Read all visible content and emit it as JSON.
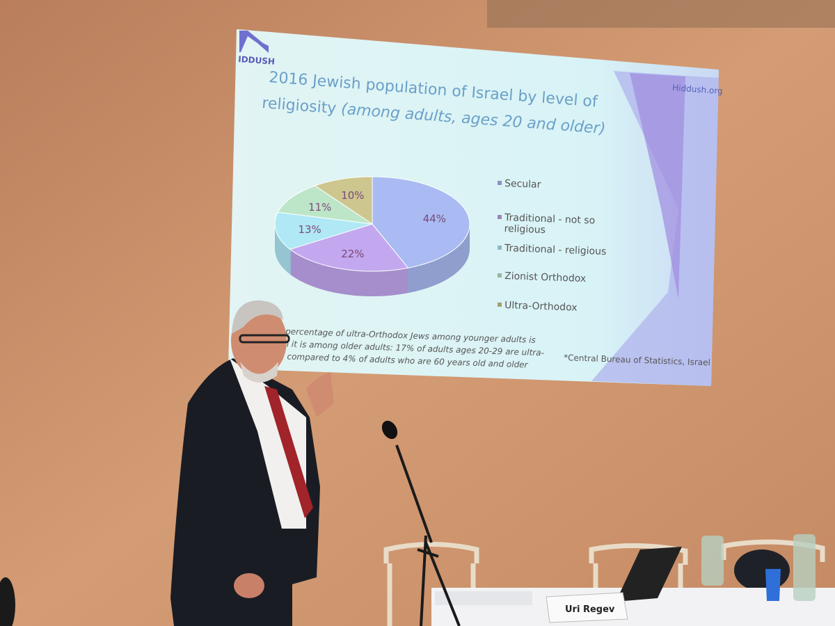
{
  "slide": {
    "logo_text": "IDDUSH",
    "site": "Hiddush.org",
    "title_line1": "2016 Jewish population of Israel by level of",
    "title_line2_normal": "religiosity ",
    "title_line2_italic": "(among adults, ages 20 and older)",
    "footnote_lines": [
      "percentage of ultra-Orthodox Jews among younger adults is",
      "n it is among older adults: 17% of adults ages 20-29 are ultra-",
      ", compared to 4% of adults who are 60 years old and older"
    ],
    "source": "*Central Bureau of Statistics, Israel"
  },
  "chart_data": {
    "type": "pie",
    "style": "3d",
    "title": "2016 Jewish population of Israel by level of religiosity (among adults, ages 20 and older)",
    "legend_position": "right",
    "categories": [
      "Secular",
      "Traditional - not so religious",
      "Traditional - religious",
      "Zionist Orthodox",
      "Ultra-Orthodox"
    ],
    "legend_lines": [
      [
        "Secular"
      ],
      [
        "Traditional - not so",
        "religious"
      ],
      [
        "Traditional - religious"
      ],
      [
        "Zionist Orthodox"
      ],
      [
        "Ultra-Orthodox"
      ]
    ],
    "values": [
      44,
      22,
      13,
      11,
      10
    ],
    "labels": [
      "44%",
      "22%",
      "13%",
      "11%",
      "10%"
    ],
    "colors": [
      "#a9bbf2",
      "#c3a8ef",
      "#b0e8f5",
      "#bde6c9",
      "#cdc68e"
    ]
  },
  "name_card": "Uri Regev"
}
